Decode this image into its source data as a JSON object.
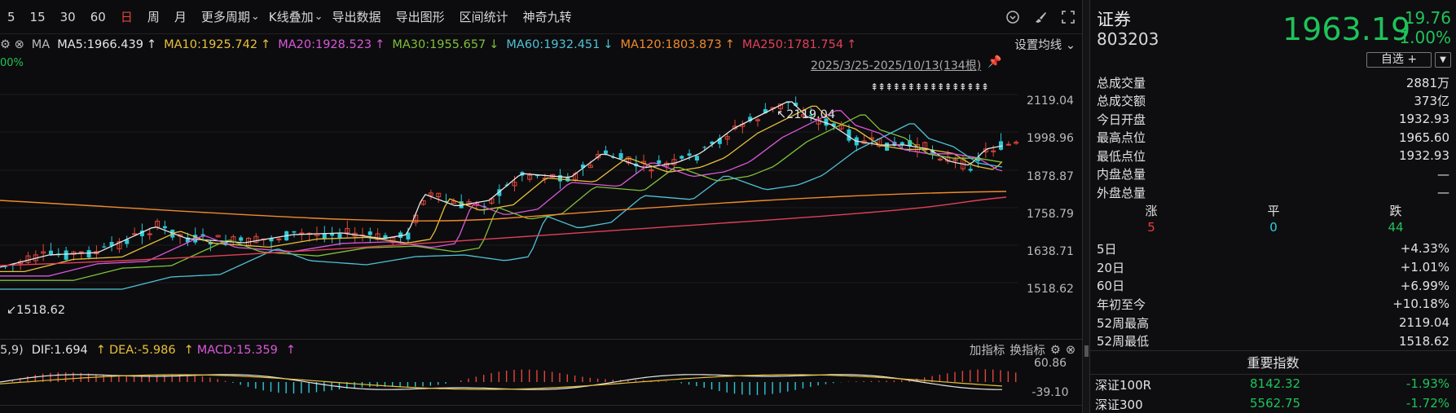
{
  "toolbar": {
    "items": [
      "5",
      "15",
      "30",
      "60",
      "日",
      "周",
      "月",
      "更多周期",
      "K线叠加",
      "导出数据",
      "导出图形",
      "区间统计",
      "神奇九转"
    ],
    "active_index": 4,
    "icons": [
      "clock-settings-icon",
      "brush-icon",
      "fullscreen-icon"
    ]
  },
  "ma_legend": {
    "prefix": "MA",
    "items": [
      {
        "label": "MA5:1966.439",
        "arrow": "↑",
        "color": "#e6e6e6"
      },
      {
        "label": "MA10:1925.742",
        "arrow": "↑",
        "color": "#e8c13a"
      },
      {
        "label": "MA20:1928.523",
        "arrow": "↑",
        "color": "#d957d9"
      },
      {
        "label": "MA30:1955.657",
        "arrow": "↓",
        "color": "#7fbf3a"
      },
      {
        "label": "MA60:1932.451",
        "arrow": "↓",
        "color": "#4fc1d6"
      },
      {
        "label": "MA120:1803.873",
        "arrow": "↑",
        "color": "#f08a2a"
      },
      {
        "label": "MA250:1781.754",
        "arrow": "↑",
        "color": "#e2405a"
      }
    ],
    "settings_label": "设置均线",
    "pct_label": "00%"
  },
  "range_label": "2025/3/25-2025/10/13(134根)",
  "price_axis": [
    "2119.04",
    "1998.96",
    "1878.87",
    "1758.79",
    "1638.71",
    "1518.62"
  ],
  "high_label": "2119.04",
  "low_label": "1518.62",
  "macd": {
    "prefix": "5,9)",
    "dif": "DIF:1.694",
    "dea": "DEA:-5.986",
    "macd": "MACD:15.359",
    "axis": [
      "60.86",
      "-39.10"
    ],
    "tools": [
      "加指标",
      "换指标"
    ]
  },
  "side": {
    "name": "证券",
    "code": "803203",
    "price": "1963.19",
    "change": "-19.76",
    "change_pct": "-1.00%",
    "watch_label": "自选 +",
    "stats": [
      {
        "k": "总成交量",
        "v": "2881万",
        "c": "white"
      },
      {
        "k": "总成交额",
        "v": "373亿",
        "c": "white"
      },
      {
        "k": "今日开盘",
        "v": "1932.93",
        "c": "green"
      },
      {
        "k": "最高点位",
        "v": "1965.60",
        "c": "green"
      },
      {
        "k": "最低点位",
        "v": "1932.93",
        "c": "green"
      },
      {
        "k": "内盘总量",
        "v": "—",
        "c": "white"
      },
      {
        "k": "外盘总量",
        "v": "—",
        "c": "white"
      }
    ],
    "updown": {
      "up_label": "涨",
      "flat_label": "平",
      "down_label": "跌",
      "up": "5",
      "flat": "0",
      "down": "44"
    },
    "perf": [
      {
        "k": "5日",
        "v": "+4.33%",
        "c": "red"
      },
      {
        "k": "20日",
        "v": "+1.01%",
        "c": "red"
      },
      {
        "k": "60日",
        "v": "+6.99%",
        "c": "red"
      },
      {
        "k": "年初至今",
        "v": "+10.18%",
        "c": "red"
      },
      {
        "k": "52周最高",
        "v": "2119.04",
        "c": "red"
      },
      {
        "k": "52周最低",
        "v": "1518.62",
        "c": "green"
      }
    ],
    "index_header": "重要指数",
    "indices": [
      {
        "name": "深证100R",
        "value": "8142.32",
        "pct": "-1.93%"
      },
      {
        "name": "深证300",
        "value": "5562.75",
        "pct": "-1.72%"
      }
    ]
  }
}
